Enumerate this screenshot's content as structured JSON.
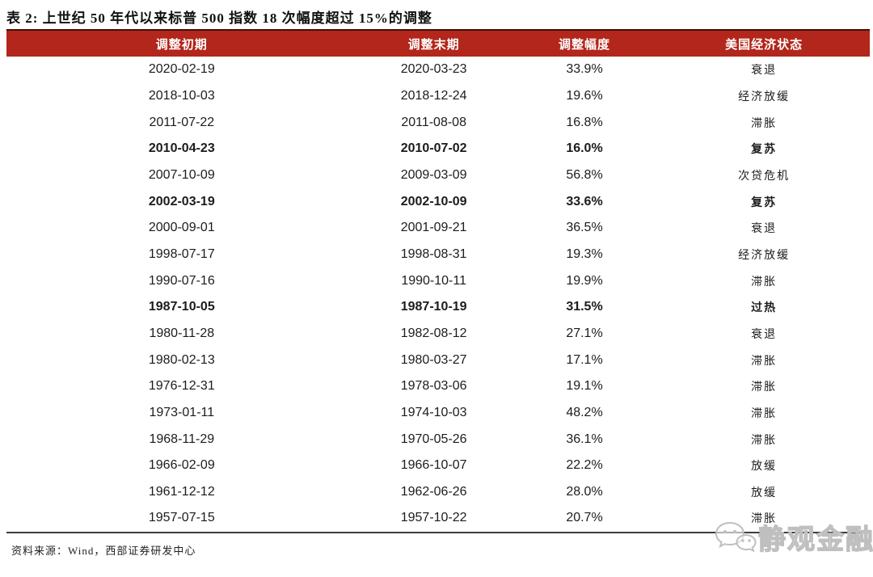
{
  "title": "表 2: 上世纪 50 年代以来标普 500 指数 18 次幅度超过 15%的调整",
  "table": {
    "headers": [
      "调整初期",
      "调整末期",
      "调整幅度",
      "美国经济状态"
    ],
    "rows": [
      {
        "start": "2020-02-19",
        "end": "2020-03-23",
        "magnitude": "33.9%",
        "status": "衰退",
        "bold": false
      },
      {
        "start": "2018-10-03",
        "end": "2018-12-24",
        "magnitude": "19.6%",
        "status": "经济放缓",
        "bold": false
      },
      {
        "start": "2011-07-22",
        "end": "2011-08-08",
        "magnitude": "16.8%",
        "status": "滞胀",
        "bold": false
      },
      {
        "start": "2010-04-23",
        "end": "2010-07-02",
        "magnitude": "16.0%",
        "status": "复苏",
        "bold": true
      },
      {
        "start": "2007-10-09",
        "end": "2009-03-09",
        "magnitude": "56.8%",
        "status": "次贷危机",
        "bold": false
      },
      {
        "start": "2002-03-19",
        "end": "2002-10-09",
        "magnitude": "33.6%",
        "status": "复苏",
        "bold": true
      },
      {
        "start": "2000-09-01",
        "end": "2001-09-21",
        "magnitude": "36.5%",
        "status": "衰退",
        "bold": false
      },
      {
        "start": "1998-07-17",
        "end": "1998-08-31",
        "magnitude": "19.3%",
        "status": "经济放缓",
        "bold": false
      },
      {
        "start": "1990-07-16",
        "end": "1990-10-11",
        "magnitude": "19.9%",
        "status": "滞胀",
        "bold": false
      },
      {
        "start": "1987-10-05",
        "end": "1987-10-19",
        "magnitude": "31.5%",
        "status": "过热",
        "bold": true
      },
      {
        "start": "1980-11-28",
        "end": "1982-08-12",
        "magnitude": "27.1%",
        "status": "衰退",
        "bold": false
      },
      {
        "start": "1980-02-13",
        "end": "1980-03-27",
        "magnitude": "17.1%",
        "status": "滞胀",
        "bold": false
      },
      {
        "start": "1976-12-31",
        "end": "1978-03-06",
        "magnitude": "19.1%",
        "status": "滞胀",
        "bold": false
      },
      {
        "start": "1973-01-11",
        "end": "1974-10-03",
        "magnitude": "48.2%",
        "status": "滞胀",
        "bold": false
      },
      {
        "start": "1968-11-29",
        "end": "1970-05-26",
        "magnitude": "36.1%",
        "status": "滞胀",
        "bold": false
      },
      {
        "start": "1966-02-09",
        "end": "1966-10-07",
        "magnitude": "22.2%",
        "status": "放缓",
        "bold": false
      },
      {
        "start": "1961-12-12",
        "end": "1962-06-26",
        "magnitude": "28.0%",
        "status": "放缓",
        "bold": false
      },
      {
        "start": "1957-07-15",
        "end": "1957-10-22",
        "magnitude": "20.7%",
        "status": "滞胀",
        "bold": false
      }
    ]
  },
  "footer": {
    "source": "资料来源：Wind，西部证券研发中心"
  },
  "watermark": {
    "text": "静观金融",
    "icon": "wechat-icon"
  },
  "colors": {
    "header_bg": "#B2261B",
    "header_text": "#FFFFFF",
    "header_top_border": "#40100A",
    "body_text": "#1C1C1C",
    "bottom_border": "#3D3D3D",
    "watermark_gray": "#BFBFBF"
  }
}
